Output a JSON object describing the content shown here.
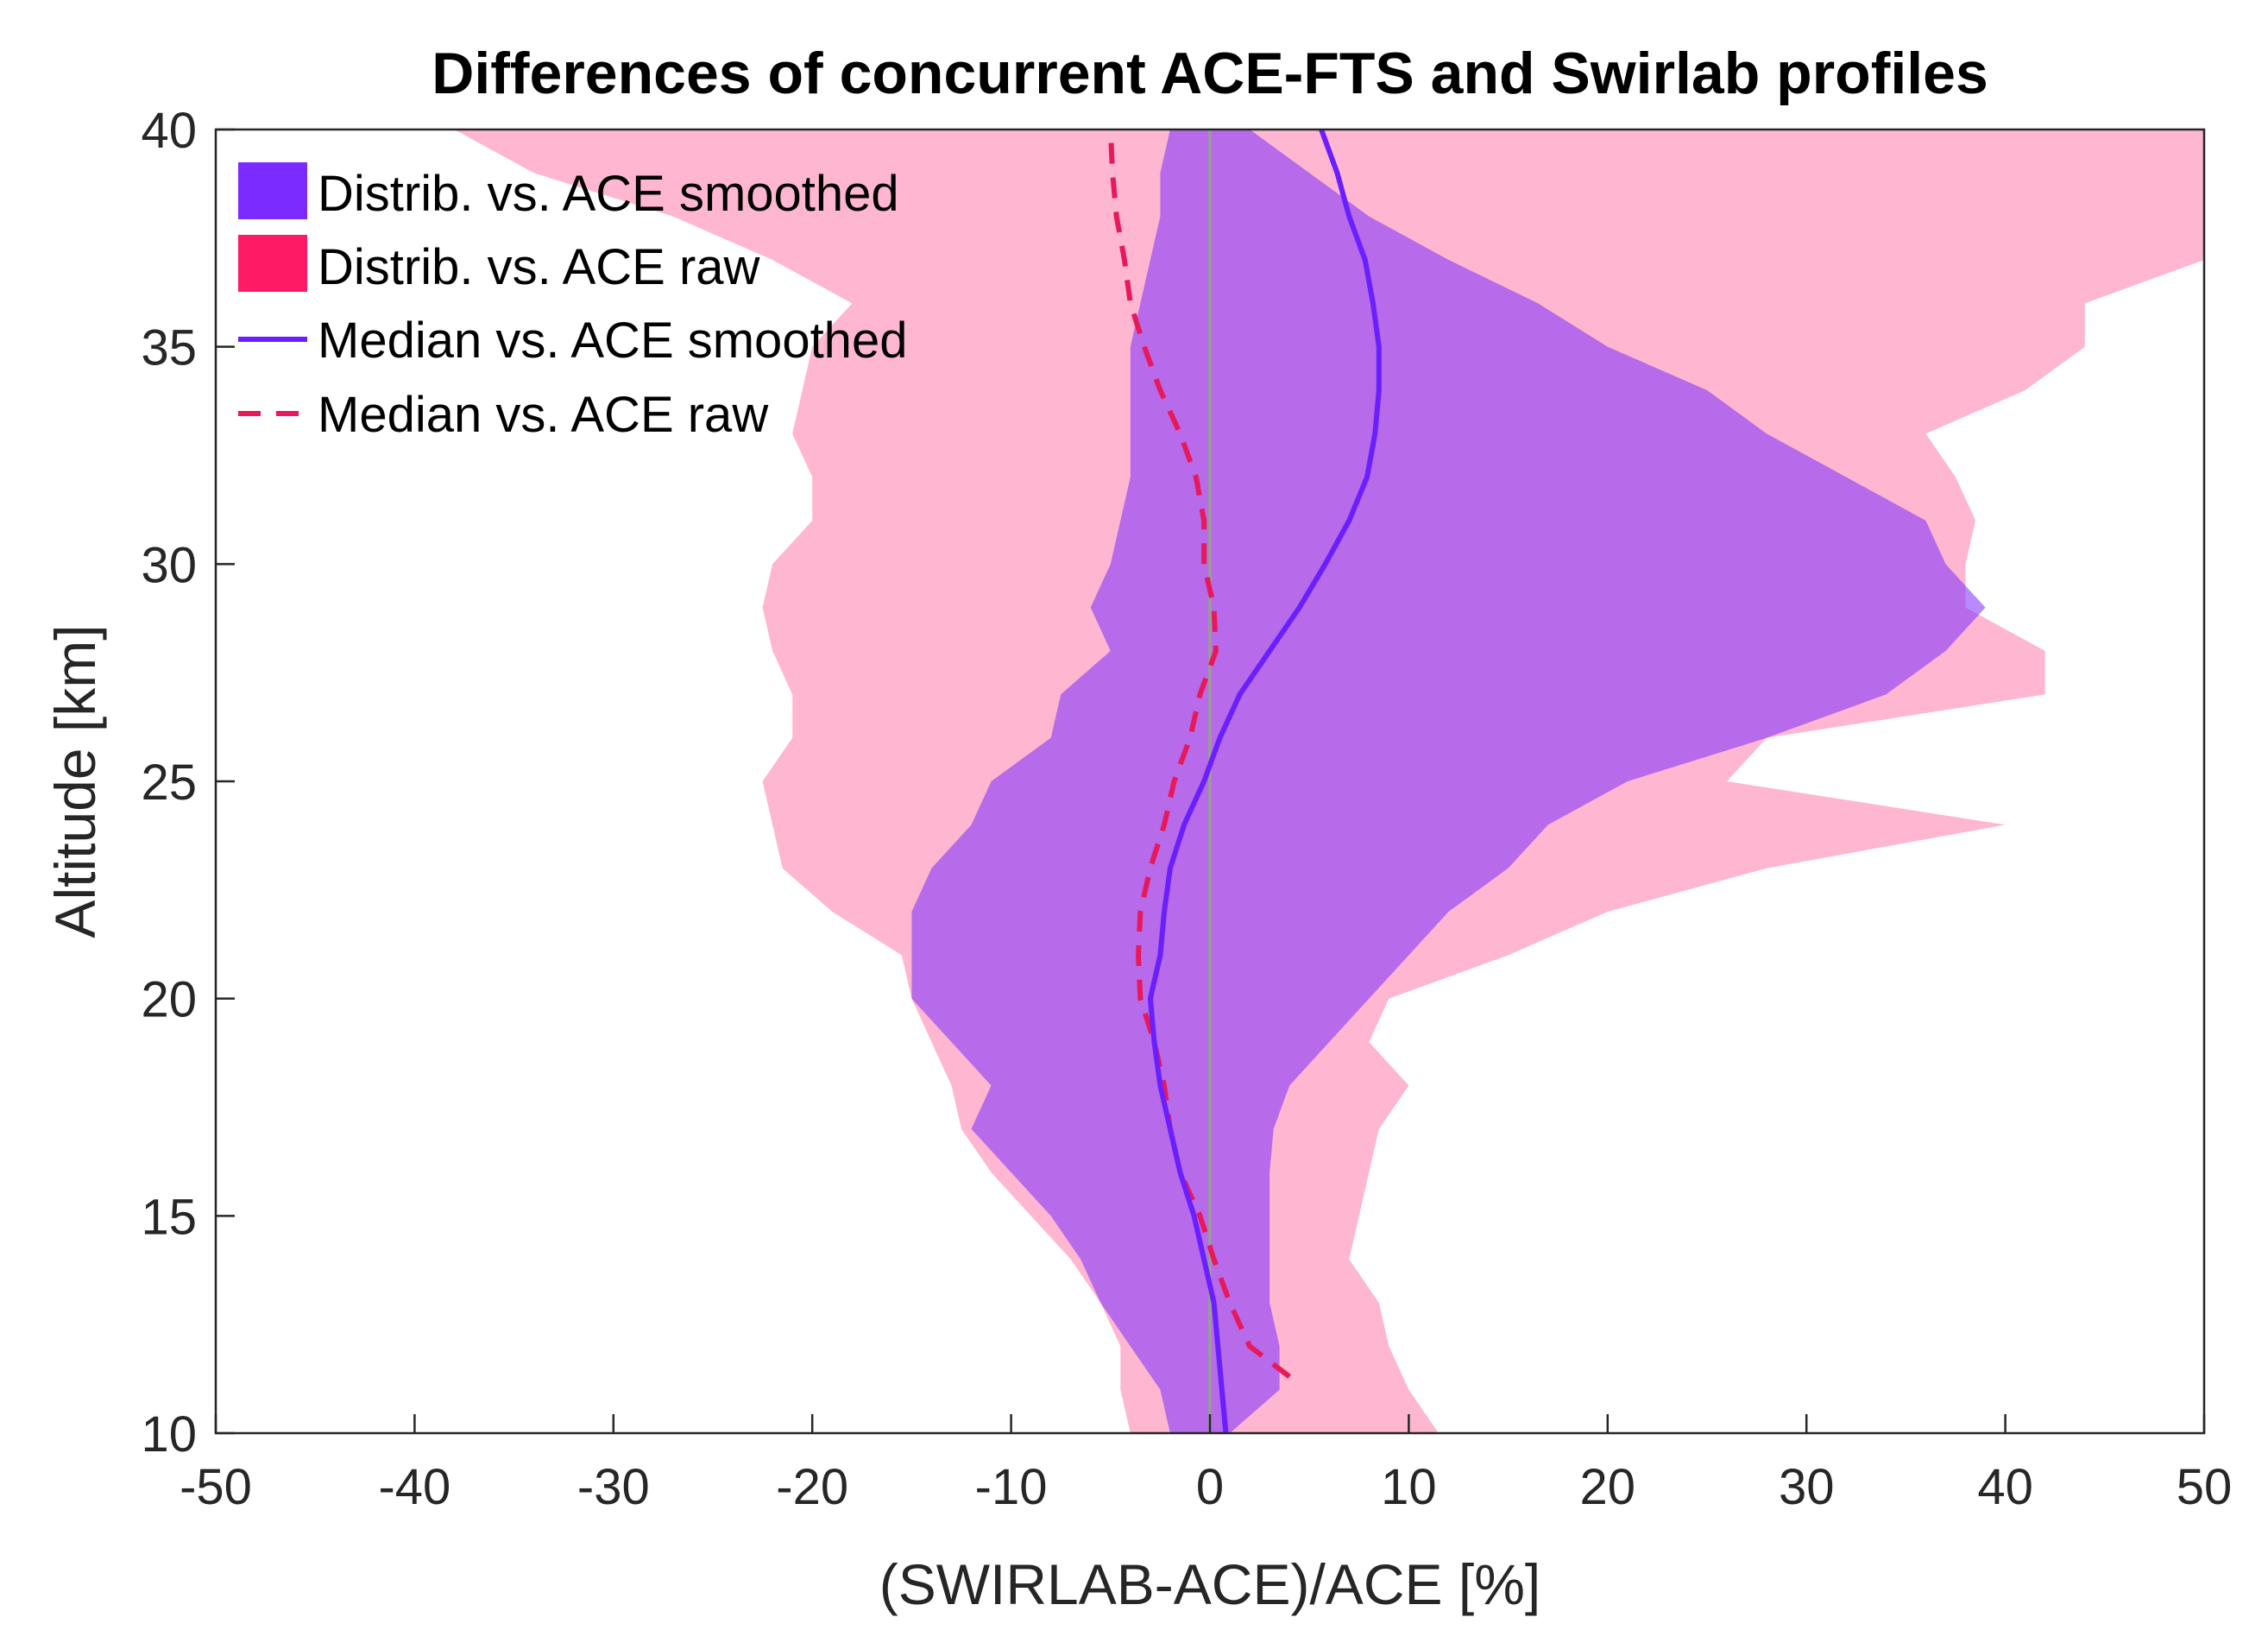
{
  "chart_data": {
    "type": "area",
    "title": "Differences of concurrent ACE-FTS and Swirlab profiles",
    "xlabel": "(SWIRLAB-ACE)/ACE [%]",
    "ylabel": "Altitude [km]",
    "xlim": [
      -50,
      50
    ],
    "ylim": [
      10,
      40
    ],
    "xticks": [
      -50,
      -40,
      -30,
      -20,
      -10,
      0,
      10,
      20,
      30,
      40,
      50
    ],
    "yticks": [
      10,
      15,
      20,
      25,
      30,
      35,
      40
    ],
    "grid": true,
    "legend_position": "top-left",
    "colors": {
      "raw_fill": "#ff1a8c",
      "smoothed_fill": "#7b2bff",
      "median_smoothed": "#6a1fff",
      "median_raw": "#e8195a",
      "zero_line": "#9a9a9a",
      "axes": "#262626"
    },
    "series": [
      {
        "name": "Distrib. vs. ACE smoothed",
        "kind": "band",
        "altitude": [
          10,
          11,
          12,
          13,
          14,
          15,
          16,
          17,
          18,
          19,
          20,
          21,
          22,
          23,
          24,
          25,
          26,
          27,
          28,
          29,
          30,
          31,
          32,
          33,
          34,
          35,
          36,
          37,
          38,
          39,
          40
        ],
        "lower": [
          -2,
          -2.5,
          -4,
          -5.5,
          -6.5,
          -8,
          -10,
          -12,
          -11,
          -13,
          -15,
          -15,
          -15,
          -14,
          -12,
          -11,
          -8,
          -7.5,
          -5,
          -6,
          -5,
          -4.5,
          -4,
          -4,
          -4,
          -4,
          -3.5,
          -3,
          -2.5,
          -2.5,
          -2
        ],
        "upper": [
          1,
          3.5,
          3.5,
          3,
          3,
          3,
          3,
          3.2,
          4,
          6,
          8,
          10,
          12,
          15,
          17,
          21,
          28,
          34,
          37,
          39,
          37,
          36,
          32,
          28,
          25,
          20,
          16.5,
          12,
          8,
          5,
          2
        ]
      },
      {
        "name": "Distrib. vs. ACE raw",
        "kind": "band",
        "altitude": [
          10,
          11,
          12,
          13,
          14,
          15,
          16,
          17,
          18,
          19,
          20,
          21,
          22,
          23,
          24,
          25,
          26,
          27,
          28,
          29,
          30,
          31,
          32,
          33,
          34,
          35,
          36,
          37,
          38,
          39,
          40
        ],
        "lower": [
          -4,
          -4.5,
          -4.5,
          -5.5,
          -7,
          -9,
          -11,
          -12.5,
          -13,
          -14,
          -15,
          -15.5,
          -19,
          -21.5,
          -22,
          -22.5,
          -21,
          -21,
          -22,
          -22.5,
          -22,
          -20,
          -20,
          -21,
          -20.5,
          -20,
          -18,
          -22,
          -27,
          -34,
          -38
        ],
        "upper": [
          11.5,
          10,
          9,
          8.5,
          7,
          7.5,
          8,
          8.5,
          10,
          8,
          9,
          15,
          20,
          28,
          40,
          26,
          28,
          42,
          42,
          38,
          38,
          38.5,
          37.5,
          36,
          41,
          44,
          44,
          50,
          50,
          50,
          50
        ]
      },
      {
        "name": "Median vs. ACE smoothed",
        "kind": "line",
        "altitude": [
          10,
          11,
          12,
          13,
          14,
          15,
          16,
          17,
          18,
          19,
          20,
          21,
          22,
          23,
          24,
          25,
          26,
          27,
          28,
          29,
          30,
          31,
          32,
          33,
          34,
          35,
          36,
          37,
          38,
          39,
          40
        ],
        "x": [
          0.8,
          0.6,
          0.4,
          0.2,
          -0.3,
          -0.8,
          -1.5,
          -2,
          -2.5,
          -2.8,
          -3,
          -2.5,
          -2.3,
          -2,
          -1.3,
          -0.3,
          0.5,
          1.5,
          3,
          4.5,
          5.8,
          7,
          7.9,
          8.3,
          8.5,
          8.5,
          8.2,
          7.8,
          7,
          6.4,
          5.6
        ]
      },
      {
        "name": "Median vs. ACE raw",
        "kind": "dashed-line",
        "altitude": [
          11.3,
          12,
          13,
          14,
          15,
          16,
          17,
          18,
          19,
          20,
          21,
          22,
          23,
          24,
          25,
          26,
          27,
          28,
          29,
          30,
          31,
          32,
          33,
          34,
          35,
          36,
          37,
          38,
          39,
          40
        ],
        "x": [
          4,
          2,
          1,
          0.2,
          -0.5,
          -1.5,
          -2,
          -2.3,
          -2.8,
          -3.5,
          -3.6,
          -3.5,
          -3,
          -2.3,
          -1.8,
          -1,
          -0.5,
          0.3,
          0.2,
          -0.3,
          -0.3,
          -0.7,
          -1.5,
          -2.5,
          -3.3,
          -4,
          -4.3,
          -4.7,
          -4.9,
          -5
        ]
      }
    ],
    "legend": [
      "Distrib. vs. ACE smoothed",
      "Distrib. vs. ACE raw",
      "Median vs. ACE smoothed",
      "Median vs. ACE raw"
    ]
  }
}
